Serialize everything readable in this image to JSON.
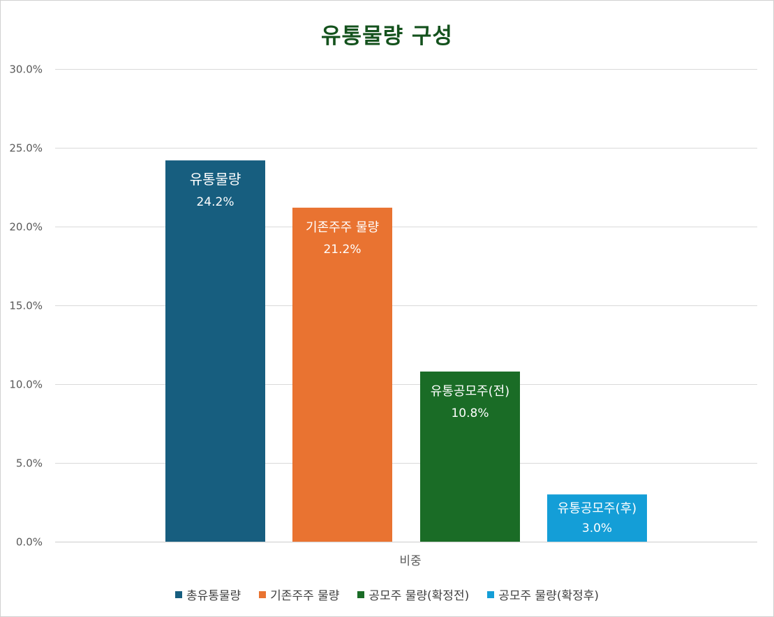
{
  "chart_data": {
    "type": "bar",
    "title": "유통물량 구성",
    "categories": [
      "비중"
    ],
    "series": [
      {
        "name": "총유통물량",
        "bar_label": "유통물량",
        "value": 24.2,
        "value_label": "24.2%",
        "color": "#175e7f"
      },
      {
        "name": "기존주주 물량",
        "bar_label": "기존주주 물량",
        "value": 21.2,
        "value_label": "21.2%",
        "color": "#e97331"
      },
      {
        "name": "공모주 물량(확정전)",
        "bar_label": "유통공모주(전)",
        "value": 10.8,
        "value_label": "10.8%",
        "color": "#1a6c26"
      },
      {
        "name": "공모주 물량(확정후)",
        "bar_label": "유통공모주(후)",
        "value": 3.0,
        "value_label": "3.0%",
        "color": "#149ed7"
      }
    ],
    "ylim": [
      0,
      30
    ],
    "yticks": [
      {
        "value": 0,
        "label": "0.0%"
      },
      {
        "value": 5,
        "label": "5.0%"
      },
      {
        "value": 10,
        "label": "10.0%"
      },
      {
        "value": 15,
        "label": "15.0%"
      },
      {
        "value": 20,
        "label": "20.0%"
      },
      {
        "value": 25,
        "label": "25.0%"
      },
      {
        "value": 30,
        "label": "30.0%"
      }
    ],
    "grid": true,
    "legend_position": "bottom",
    "grid_color": "#d9d9d9",
    "title_color": "#14521d"
  }
}
